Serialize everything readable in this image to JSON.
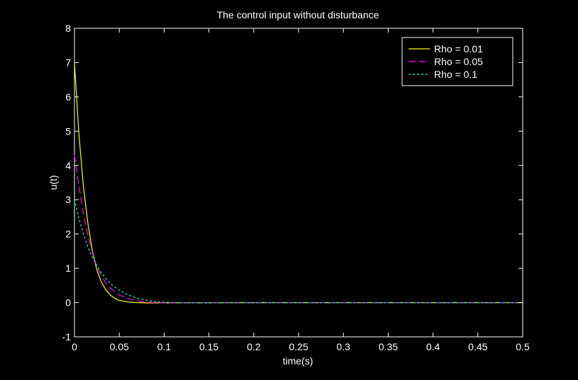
{
  "chart_data": {
    "type": "line",
    "title": "The control input without disturbance",
    "xlabel": "time(s)",
    "ylabel": "u(t)",
    "xlim": [
      0,
      0.5
    ],
    "ylim": [
      -1,
      8
    ],
    "xticks": [
      0,
      0.05,
      0.1,
      0.15,
      0.2,
      0.25,
      0.3,
      0.35,
      0.4,
      0.45,
      0.5
    ],
    "xtick_labels": [
      "0",
      "0.05",
      "0.1",
      "0.15",
      "0.2",
      "0.25",
      "0.3",
      "0.35",
      "0.4",
      "0.45",
      "0.5"
    ],
    "yticks": [
      -1,
      0,
      1,
      2,
      3,
      4,
      5,
      6,
      7,
      8
    ],
    "ytick_labels": [
      "-1",
      "0",
      "1",
      "2",
      "3",
      "4",
      "5",
      "6",
      "7",
      "8"
    ],
    "grid": false,
    "legend_position": "top-right",
    "colors": {
      "background": "#000000",
      "axes": "#ffffff"
    },
    "series": [
      {
        "name": "Rho = 0.01",
        "color": "#ffff00",
        "dash": "solid",
        "x": [
          0,
          0.005,
          0.01,
          0.015,
          0.02,
          0.025,
          0.03,
          0.035,
          0.04,
          0.045,
          0.05,
          0.06,
          0.07,
          0.08,
          0.1,
          0.15,
          0.2,
          0.3,
          0.4,
          0.5
        ],
        "y": [
          7.0,
          4.9,
          3.4,
          2.3,
          1.5,
          0.95,
          0.6,
          0.37,
          0.22,
          0.12,
          0.06,
          0.015,
          0.0,
          -0.01,
          -0.01,
          -0.005,
          0.0,
          0.0,
          0.0,
          0.0
        ]
      },
      {
        "name": "Rho = 0.05",
        "color": "#ff00ff",
        "dash": "dashed",
        "x": [
          0,
          0.005,
          0.01,
          0.015,
          0.02,
          0.025,
          0.03,
          0.035,
          0.04,
          0.045,
          0.05,
          0.06,
          0.07,
          0.08,
          0.09,
          0.1,
          0.12,
          0.15,
          0.2,
          0.3,
          0.4,
          0.5
        ],
        "y": [
          4.3,
          3.4,
          2.6,
          1.95,
          1.45,
          1.05,
          0.78,
          0.58,
          0.43,
          0.31,
          0.22,
          0.11,
          0.05,
          0.015,
          0.0,
          -0.01,
          -0.01,
          -0.005,
          0.0,
          0.0,
          0.0,
          0.0
        ]
      },
      {
        "name": "Rho = 0.1",
        "color": "#00ffcc",
        "dash": "dotted",
        "x": [
          0,
          0.005,
          0.01,
          0.015,
          0.02,
          0.025,
          0.03,
          0.035,
          0.04,
          0.045,
          0.05,
          0.06,
          0.07,
          0.08,
          0.09,
          0.1,
          0.12,
          0.15,
          0.2,
          0.3,
          0.4,
          0.5
        ],
        "y": [
          3.0,
          2.45,
          2.0,
          1.62,
          1.32,
          1.07,
          0.87,
          0.7,
          0.56,
          0.45,
          0.36,
          0.22,
          0.13,
          0.07,
          0.03,
          0.01,
          -0.005,
          -0.01,
          0.0,
          0.0,
          0.0,
          0.0
        ]
      }
    ]
  }
}
